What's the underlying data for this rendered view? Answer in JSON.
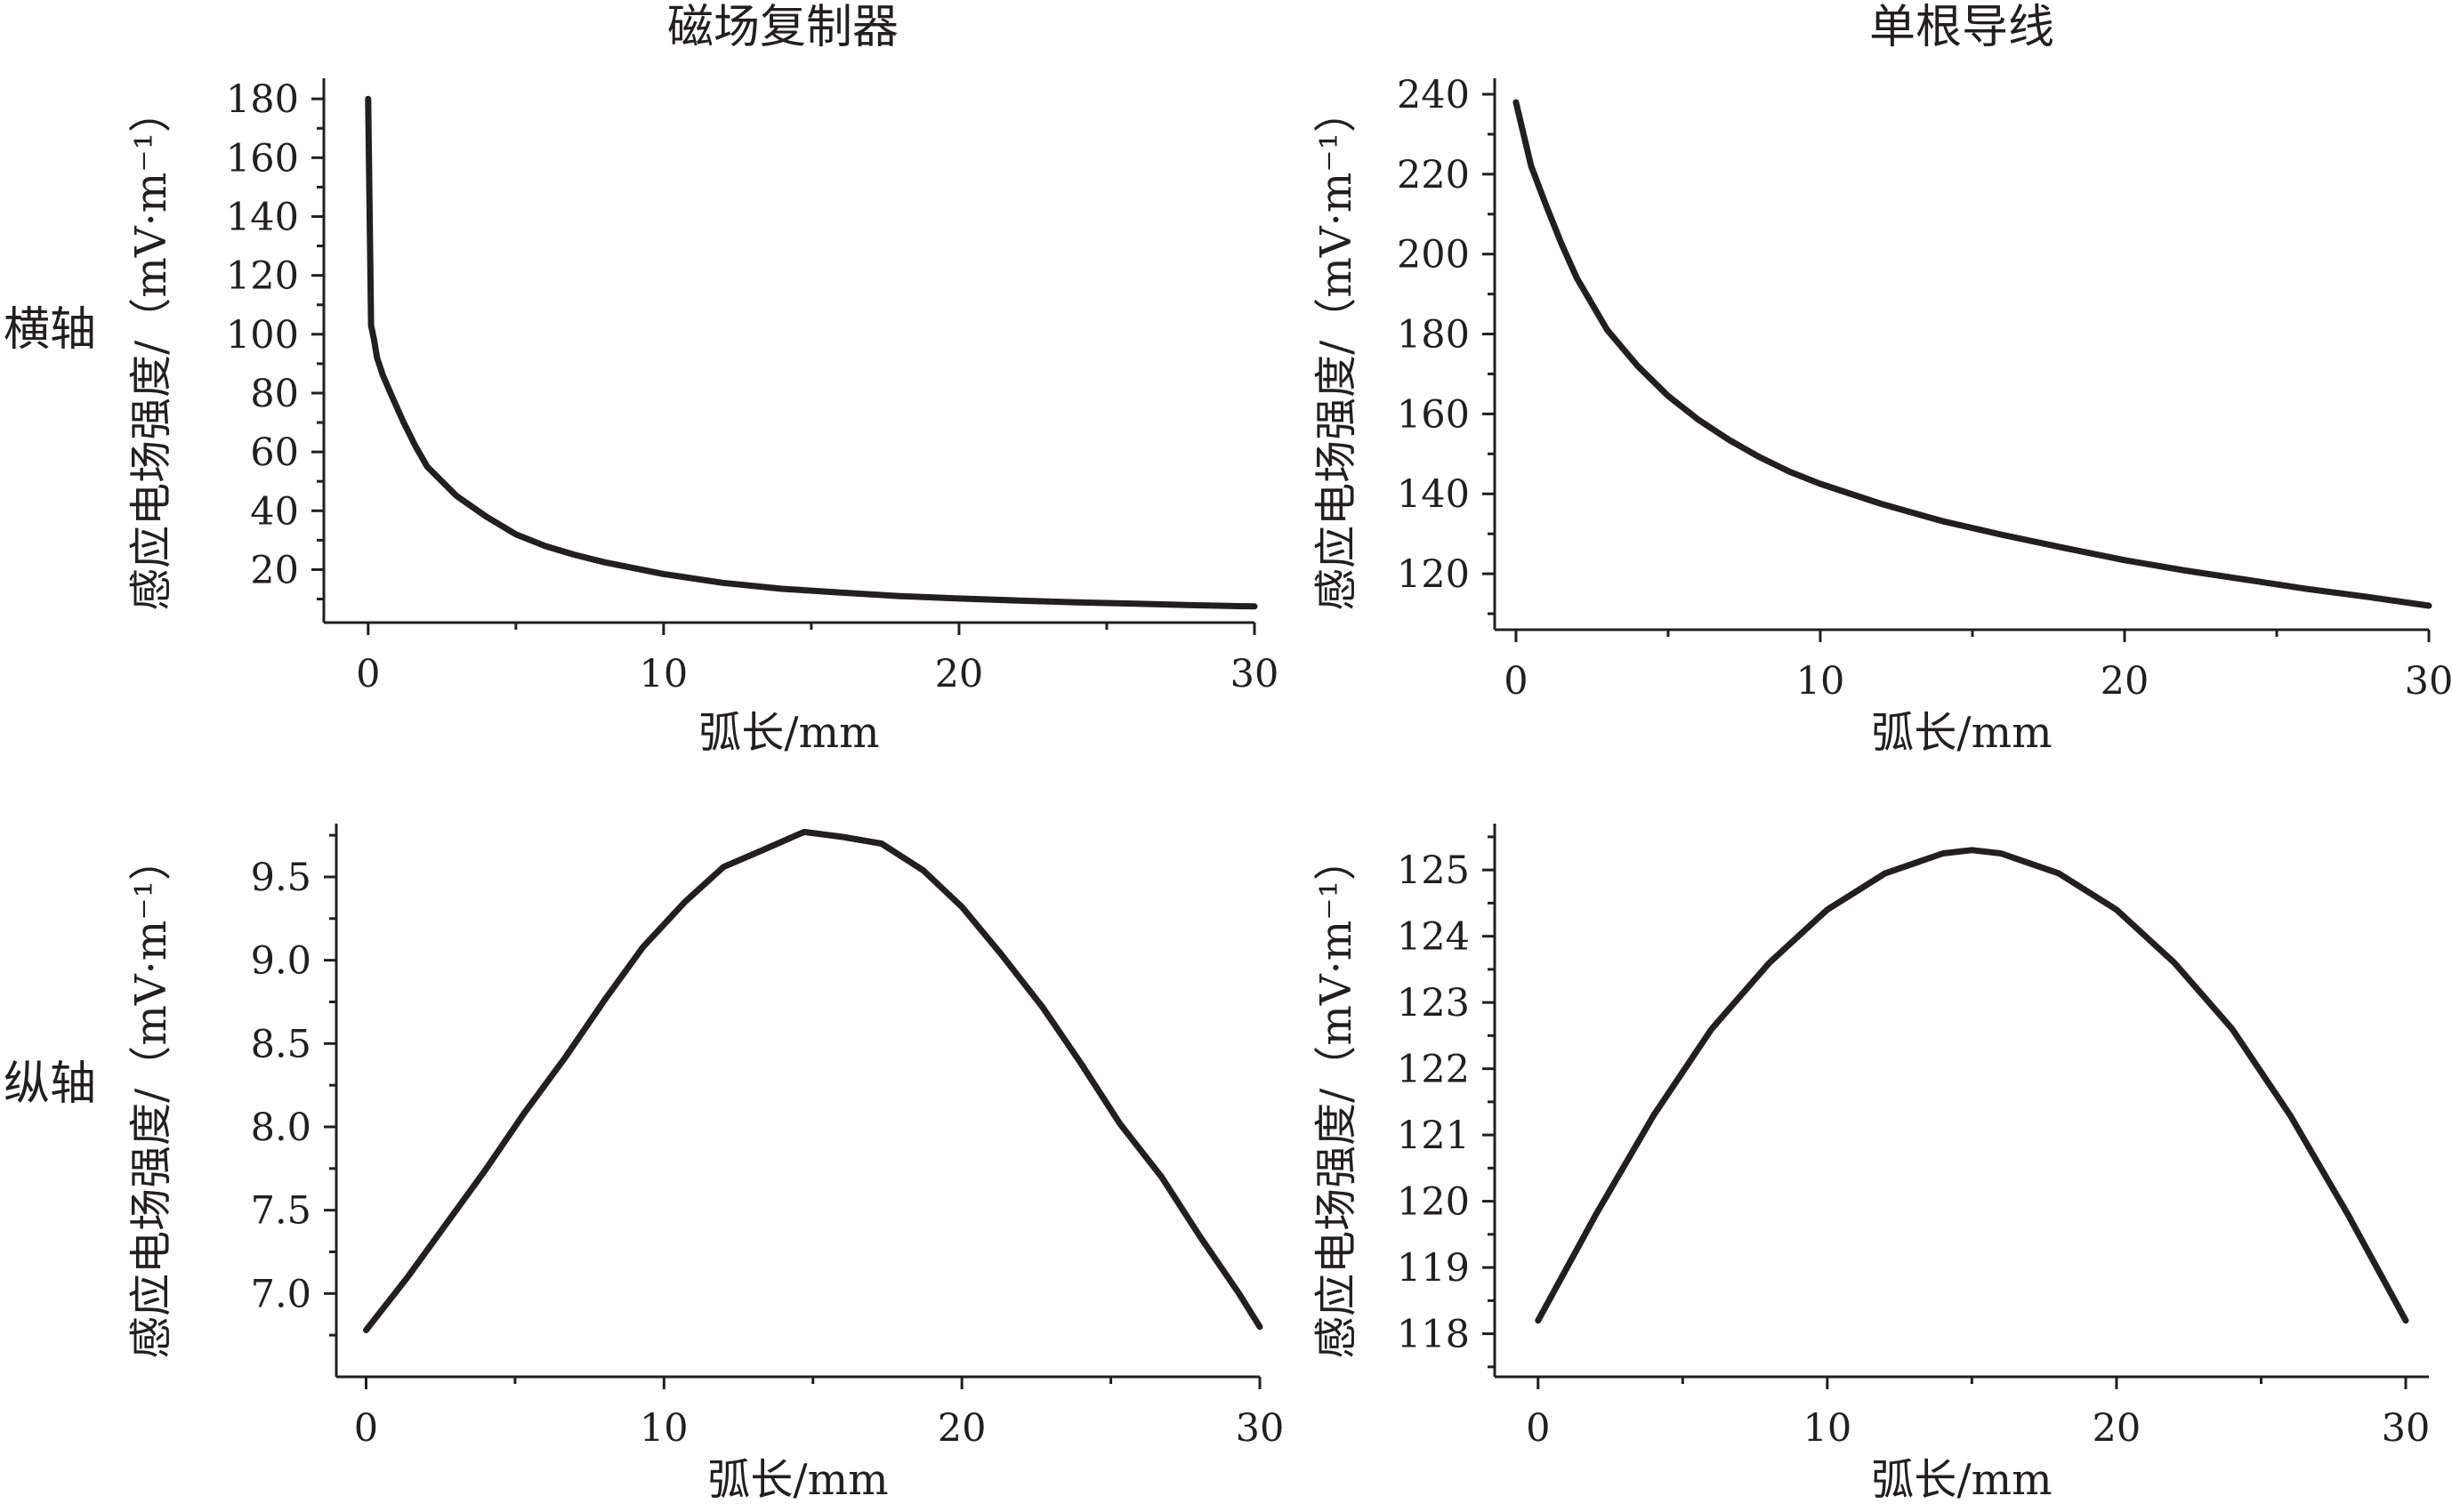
{
  "column_titles": [
    "磁场复制器",
    "单根导线"
  ],
  "row_labels": [
    "横轴",
    "纵轴"
  ],
  "chart_data": [
    {
      "type": "line",
      "row": 0,
      "col": 0,
      "xlabel": "弧长/mm",
      "ylabel": "感应电场强度/（mV·m⁻¹）",
      "xlim": [
        -1.5,
        30
      ],
      "ylim": [
        2,
        187
      ],
      "xticks": [
        0,
        10,
        20,
        30
      ],
      "yticks": [
        20,
        40,
        60,
        80,
        100,
        120,
        140,
        160,
        180
      ],
      "y_decimals": 0,
      "series": [
        {
          "x": [
            0,
            0.1,
            0.2,
            0.3,
            0.5,
            0.8,
            1.2,
            1.6,
            2,
            3,
            4,
            5,
            6,
            7,
            8,
            9,
            10,
            12,
            14,
            16,
            18,
            20,
            22,
            24,
            26,
            28,
            30
          ],
          "y": [
            180,
            103,
            98,
            92,
            86,
            79,
            70,
            62,
            55,
            45,
            38,
            32,
            28,
            25,
            22.5,
            20.5,
            18.5,
            15.5,
            13.5,
            12.2,
            11,
            10.2,
            9.5,
            8.9,
            8.4,
            7.9,
            7.5
          ]
        }
      ]
    },
    {
      "type": "line",
      "row": 0,
      "col": 1,
      "xlabel": "弧长/mm",
      "ylabel": "感应电场强度/（mV·m⁻¹）",
      "xlim": [
        -0.7,
        30
      ],
      "ylim": [
        106,
        244
      ],
      "xticks": [
        0,
        10,
        20,
        30
      ],
      "yticks": [
        120,
        140,
        160,
        180,
        200,
        220,
        240
      ],
      "y_decimals": 0,
      "series": [
        {
          "x": [
            0,
            0.5,
            1,
            1.5,
            2,
            3,
            4,
            5,
            6,
            7,
            8,
            9,
            10,
            12,
            14,
            16,
            18,
            20,
            22,
            24,
            26,
            28,
            30
          ],
          "y": [
            238,
            222,
            212,
            202.5,
            194,
            181,
            172,
            164.5,
            158.5,
            153.5,
            149.2,
            145.5,
            142.5,
            137.5,
            133.2,
            129.7,
            126.5,
            123.4,
            120.8,
            118.5,
            116.2,
            114.2,
            112
          ]
        }
      ]
    },
    {
      "type": "line",
      "row": 1,
      "col": 0,
      "xlabel": "弧长/mm",
      "ylabel": "感应电场强度/（mV·m⁻¹）",
      "xlim": [
        -1,
        30
      ],
      "ylim": [
        6.5,
        9.82
      ],
      "xticks": [
        0,
        10,
        20,
        30
      ],
      "yticks": [
        7.0,
        7.5,
        8.0,
        8.5,
        9.0,
        9.5
      ],
      "y_decimals": 1,
      "series": [
        {
          "x": [
            0,
            1.4,
            2.7,
            4,
            5.3,
            6.7,
            8,
            9.3,
            10.7,
            12,
            13.3,
            14.7,
            16,
            17.3,
            18.7,
            20,
            21.3,
            22.7,
            24,
            25.3,
            26.7,
            28,
            29.3,
            30
          ],
          "y": [
            6.78,
            7.1,
            7.42,
            7.74,
            8.08,
            8.42,
            8.76,
            9.08,
            9.35,
            9.56,
            9.66,
            9.77,
            9.74,
            9.7,
            9.54,
            9.32,
            9.04,
            8.72,
            8.38,
            8.02,
            7.7,
            7.34,
            7.0,
            6.8
          ]
        }
      ]
    },
    {
      "type": "line",
      "row": 1,
      "col": 1,
      "xlabel": "弧长/mm",
      "ylabel": "感应电场强度/（mV·m⁻¹）",
      "xlim": [
        -1.5,
        30.8
      ],
      "ylim": [
        117.35,
        125.7
      ],
      "xticks": [
        0,
        10,
        20,
        30
      ],
      "yticks": [
        118,
        119,
        120,
        121,
        122,
        123,
        124,
        125
      ],
      "y_decimals": 0,
      "series": [
        {
          "x": [
            0,
            2,
            4,
            6,
            8,
            10,
            12,
            14,
            15,
            16,
            18,
            20,
            22,
            24,
            26,
            28,
            30
          ],
          "y": [
            118.2,
            119.8,
            121.3,
            122.6,
            123.6,
            124.4,
            124.95,
            125.25,
            125.3,
            125.25,
            124.95,
            124.4,
            123.6,
            122.6,
            121.3,
            119.8,
            118.2
          ]
        }
      ]
    }
  ]
}
